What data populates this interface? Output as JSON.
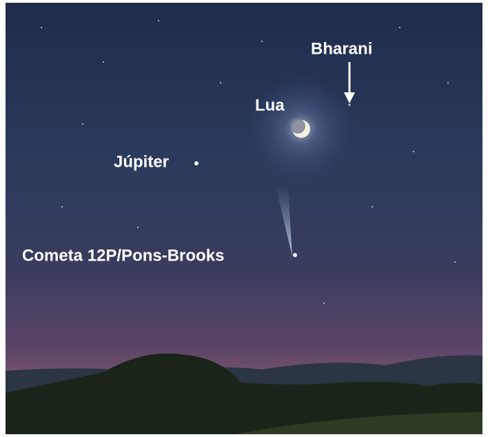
{
  "labels": [
    "Bharani",
    "Lua",
    "Júpiter",
    "Cometa 12P/Pons-Brooks"
  ]
}
